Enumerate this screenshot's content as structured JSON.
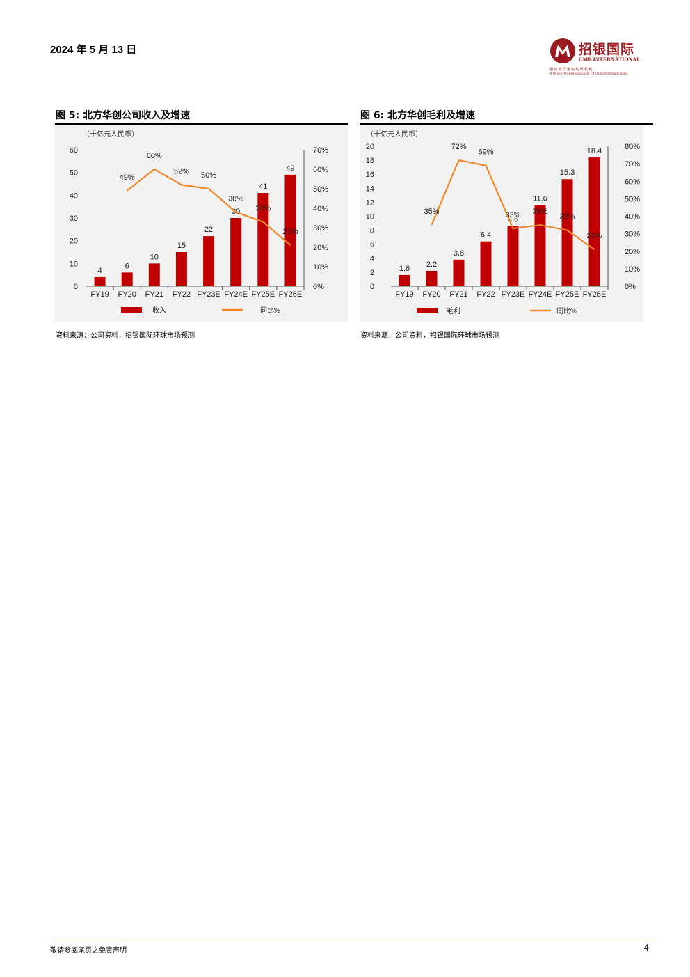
{
  "header": {
    "date": "2024 年 5 月 13 日",
    "logo": {
      "name": "招银国际",
      "en": "CMB INTERNATIONAL",
      "sub_cn": "招 商 银 行 全 资 附 属 机 构",
      "sub_en": "A Wholly Owned Subsidiary Of China Merchants Bank"
    }
  },
  "colors": {
    "bar": "#c00000",
    "line": "#f0882a",
    "brand": "#9a1b1f"
  },
  "figures": [
    {
      "title": "图 5: 北方华创公司收入及增速",
      "source": "资料来源：公司资料，招银国际环球市场预测"
    },
    {
      "title": "图 6: 北方华创毛利及增速",
      "source": "资料来源：公司资料，招银国际环球市场预测"
    }
  ],
  "chart_data": [
    {
      "type": "bar",
      "unit_label": "（十亿元人民币）",
      "categories": [
        "FY19",
        "FY20",
        "FY21",
        "FY22",
        "FY23E",
        "FY24E",
        "FY25E",
        "FY26E"
      ],
      "series": [
        {
          "name": "收入",
          "kind": "bar",
          "axis": "left",
          "values": [
            4,
            6,
            10,
            15,
            22,
            30,
            41,
            49
          ],
          "labels": [
            "4",
            "6",
            "10",
            "15",
            "22",
            "30",
            "41",
            "49"
          ]
        },
        {
          "name": "同比%",
          "kind": "line",
          "axis": "right",
          "values": [
            null,
            49,
            60,
            52,
            50,
            38,
            33,
            21
          ],
          "labels": [
            "",
            "49%",
            "60%",
            "52%",
            "50%",
            "38%",
            "33%",
            "21%"
          ]
        }
      ],
      "ylim_left": [
        0,
        60
      ],
      "yticks_left": [
        0,
        10,
        20,
        30,
        40,
        50,
        60
      ],
      "ylim_right": [
        0,
        70
      ],
      "yticks_right": [
        "0%",
        "10%",
        "20%",
        "30%",
        "40%",
        "50%",
        "60%",
        "70%"
      ],
      "legend": "bottom"
    },
    {
      "type": "bar",
      "unit_label": "（十亿元人民币）",
      "categories": [
        "FY19",
        "FY20",
        "FY21",
        "FY22",
        "FY23E",
        "FY24E",
        "FY25E",
        "FY26E"
      ],
      "series": [
        {
          "name": "毛利",
          "kind": "bar",
          "axis": "left",
          "values": [
            1.6,
            2.2,
            3.8,
            6.4,
            8.6,
            11.6,
            15.3,
            18.4
          ],
          "labels": [
            "1.6",
            "2.2",
            "3.8",
            "6.4",
            "8.6",
            "11.6",
            "15.3",
            "18.4"
          ]
        },
        {
          "name": "同比%",
          "kind": "line",
          "axis": "right",
          "values": [
            null,
            35,
            72,
            69,
            33,
            35,
            32,
            21
          ],
          "labels": [
            "",
            "35%",
            "72%",
            "69%",
            "33%",
            "35%",
            "32%",
            "21%"
          ]
        }
      ],
      "ylim_left": [
        0,
        20
      ],
      "yticks_left": [
        0,
        2,
        4,
        6,
        8,
        10,
        12,
        14,
        16,
        18,
        20
      ],
      "ylim_right": [
        0,
        80
      ],
      "yticks_right": [
        "0%",
        "10%",
        "20%",
        "30%",
        "40%",
        "50%",
        "60%",
        "70%",
        "80%"
      ],
      "legend": "bottom"
    }
  ],
  "footer": {
    "disclaimer": "敬请参阅尾页之免责声明",
    "page": "4"
  }
}
